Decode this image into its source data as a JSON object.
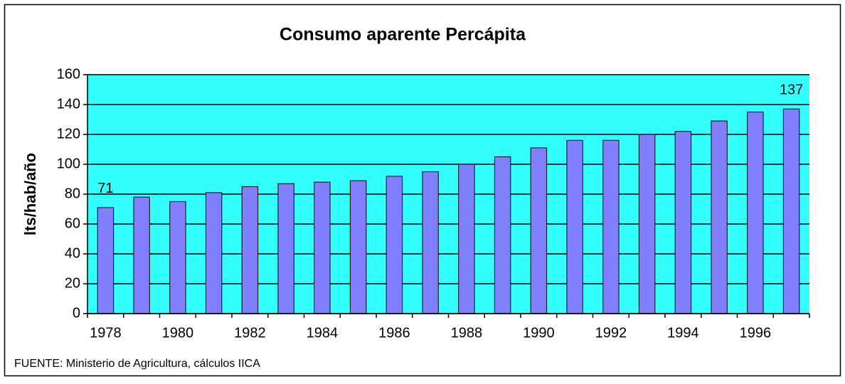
{
  "chart_data": {
    "type": "bar",
    "title": "Consumo aparente Percápita",
    "y_label": "lts/hab/año",
    "source": "FUENTE: Ministerio de Agricultura, cálculos IICA",
    "categories": [
      "1978",
      null,
      "1980",
      null,
      "1982",
      null,
      "1984",
      null,
      "1986",
      null,
      "1988",
      null,
      "1990",
      null,
      "1992",
      null,
      "1994",
      null,
      "1996",
      null
    ],
    "values": [
      71,
      78,
      75,
      81,
      85,
      87,
      88,
      89,
      92,
      95,
      100,
      105,
      111,
      116,
      116,
      120,
      122,
      129,
      135,
      137
    ],
    "value_labels": [
      "71",
      null,
      null,
      null,
      null,
      null,
      null,
      null,
      null,
      null,
      null,
      null,
      null,
      null,
      null,
      null,
      null,
      null,
      null,
      "137"
    ],
    "color": "#8080ff",
    "background": "#33ffff",
    "ylim": [
      0,
      160
    ],
    "yticks": [
      0,
      20,
      40,
      60,
      80,
      100,
      120,
      140,
      160
    ],
    "grid": true
  }
}
